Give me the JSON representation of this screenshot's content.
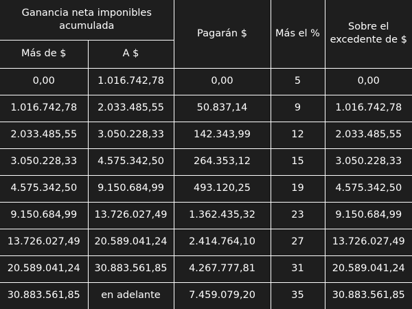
{
  "header": {
    "group_label": "Ganancia neta imponibles acumulada",
    "from_label": "Más de $",
    "to_label": "A $",
    "pay_label": "Pagarán $",
    "pct_label": "Más el %",
    "over_label": "Sobre el excedente de $"
  },
  "rows": [
    {
      "from": "0,00",
      "to": "1.016.742,78",
      "pay": "0,00",
      "pct": "5",
      "over": "0,00"
    },
    {
      "from": "1.016.742,78",
      "to": "2.033.485,55",
      "pay": "50.837,14",
      "pct": "9",
      "over": "1.016.742,78"
    },
    {
      "from": "2.033.485,55",
      "to": "3.050.228,33",
      "pay": "142.343,99",
      "pct": "12",
      "over": "2.033.485,55"
    },
    {
      "from": "3.050.228,33",
      "to": "4.575.342,50",
      "pay": "264.353,12",
      "pct": "15",
      "over": "3.050.228,33"
    },
    {
      "from": "4.575.342,50",
      "to": "9.150.684,99",
      "pay": "493.120,25",
      "pct": "19",
      "over": "4.575.342,50"
    },
    {
      "from": "9.150.684,99",
      "to": "13.726.027,49",
      "pay": "1.362.435,32",
      "pct": "23",
      "over": "9.150.684,99"
    },
    {
      "from": "13.726.027,49",
      "to": "20.589.041,24",
      "pay": "2.414.764,10",
      "pct": "27",
      "over": "13.726.027,49"
    },
    {
      "from": "20.589.041,24",
      "to": "30.883.561,85",
      "pay": "4.267.777,81",
      "pct": "31",
      "over": "20.589.041,24"
    },
    {
      "from": "30.883.561,85",
      "to": "en adelante",
      "pay": "7.459.079,20",
      "pct": "35",
      "over": "30.883.561,85"
    }
  ]
}
